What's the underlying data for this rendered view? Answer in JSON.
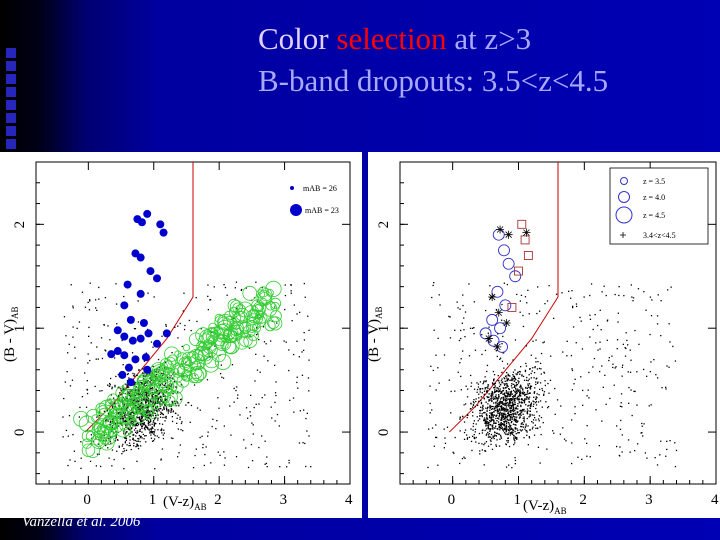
{
  "slide": {
    "title_prefix": "Color ",
    "title_highlight": "selection",
    "title_suffix": " at z>3",
    "subtitle": "B-band dropouts: 3.5<z<4.5",
    "citation": "Vanzella et al. 2006",
    "colors": {
      "title_main": "#e0d0ff",
      "title_highlight": "#ff0000",
      "title_blue": "#a8a8ff",
      "background": "#0000b4"
    }
  },
  "chart_data": [
    {
      "type": "scatter",
      "title": "",
      "xlabel": "(V-z)AB",
      "ylabel": "(B - V)AB",
      "xlim": [
        -0.8,
        4.0
      ],
      "ylim": [
        -0.5,
        2.6
      ],
      "xticks": [
        "0",
        "1",
        "2",
        "3",
        "4"
      ],
      "yticks": [
        "0",
        "1",
        "2"
      ],
      "legend": {
        "placement": "top-right",
        "entries": [
          {
            "label": "mAB = 26",
            "marker": "small blue dot"
          },
          {
            "label": "mAB = 23",
            "marker": "large blue dot"
          }
        ]
      },
      "selection_boundary": {
        "color": "#cc0000",
        "points": [
          [
            -0.05,
            0.0
          ],
          [
            0.35,
            0.25
          ],
          [
            1.2,
            0.9
          ],
          [
            1.6,
            1.3
          ],
          [
            1.6,
            2.6
          ]
        ]
      },
      "series": [
        {
          "color": "#000000",
          "marker": "dot"
        },
        {
          "color": "#33cc33",
          "marker": "open circle"
        },
        {
          "color": "#0000cc",
          "marker": "filled circle",
          "points": [
            [
              0.75,
              2.05
            ],
            [
              0.82,
              2.02
            ],
            [
              0.9,
              2.1
            ],
            [
              1.1,
              2.0
            ],
            [
              1.15,
              1.92
            ],
            [
              0.72,
              1.72
            ],
            [
              0.8,
              1.68
            ],
            [
              0.95,
              1.55
            ],
            [
              1.05,
              1.48
            ],
            [
              0.6,
              1.42
            ],
            [
              0.8,
              1.33
            ],
            [
              0.55,
              1.22
            ],
            [
              0.65,
              1.08
            ],
            [
              0.85,
              1.05
            ],
            [
              0.45,
              0.98
            ],
            [
              0.55,
              0.92
            ],
            [
              0.68,
              0.88
            ],
            [
              0.8,
              0.9
            ],
            [
              0.92,
              0.95
            ],
            [
              1.05,
              0.85
            ],
            [
              0.35,
              0.75
            ],
            [
              0.45,
              0.78
            ],
            [
              0.55,
              0.74
            ],
            [
              0.62,
              0.62
            ],
            [
              0.72,
              0.7
            ],
            [
              0.88,
              0.72
            ],
            [
              0.52,
              0.55
            ],
            [
              0.65,
              0.48
            ],
            [
              0.9,
              0.6
            ],
            [
              1.2,
              0.95
            ]
          ]
        }
      ]
    },
    {
      "type": "scatter",
      "title": "",
      "xlabel": "(V-z)AB",
      "ylabel": "(B - V)AB",
      "xlim": [
        -0.8,
        4.0
      ],
      "ylim": [
        -0.5,
        2.6
      ],
      "xticks": [
        "0",
        "1",
        "2",
        "3",
        "4"
      ],
      "yticks": [
        "0",
        "1",
        "2"
      ],
      "legend": {
        "placement": "top-right",
        "entries": [
          {
            "label": "z = 3.5",
            "marker": "open circle"
          },
          {
            "label": "z = 4.0",
            "marker": "open circle"
          },
          {
            "label": "z = 4.5",
            "marker": "open circle"
          },
          {
            "label": "3.4<z<4.5",
            "marker": "asterisk"
          }
        ]
      },
      "selection_boundary": {
        "color": "#cc0000",
        "points": [
          [
            -0.05,
            0.0
          ],
          [
            0.35,
            0.25
          ],
          [
            1.2,
            0.9
          ],
          [
            1.6,
            1.3
          ],
          [
            1.6,
            2.6
          ]
        ]
      },
      "series": [
        {
          "color": "#000000",
          "marker": "dot"
        },
        {
          "color": "#3333cc",
          "marker": "open circle",
          "points": [
            [
              0.7,
              1.9
            ],
            [
              0.78,
              1.75
            ],
            [
              0.85,
              1.62
            ],
            [
              0.95,
              1.5
            ],
            [
              0.68,
              1.35
            ],
            [
              0.8,
              1.22
            ],
            [
              0.6,
              1.08
            ],
            [
              0.72,
              1.0
            ],
            [
              0.5,
              0.95
            ],
            [
              0.62,
              0.88
            ],
            [
              0.75,
              0.82
            ]
          ]
        },
        {
          "color": "#aa3333",
          "marker": "open square",
          "points": [
            [
              1.05,
              2.0
            ],
            [
              1.1,
              1.85
            ],
            [
              1.15,
              1.7
            ],
            [
              1.0,
              1.55
            ],
            [
              0.9,
              1.2
            ]
          ]
        },
        {
          "color": "#000000",
          "marker": "asterisk",
          "points": [
            [
              0.72,
              1.95
            ],
            [
              0.85,
              1.9
            ],
            [
              1.12,
              1.92
            ],
            [
              0.6,
              1.3
            ],
            [
              0.7,
              1.15
            ],
            [
              0.82,
              1.05
            ],
            [
              0.55,
              0.9
            ],
            [
              0.68,
              0.82
            ]
          ]
        }
      ]
    }
  ]
}
